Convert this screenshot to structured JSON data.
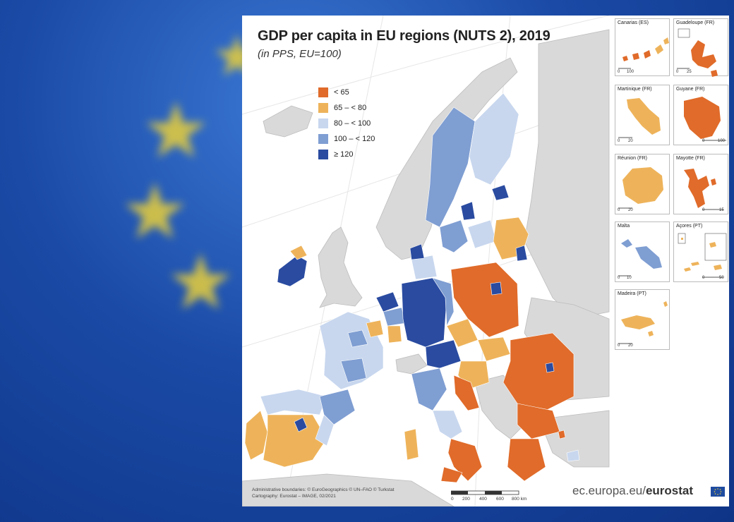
{
  "title": "GDP per capita in EU regions (NUTS 2), 2019",
  "subtitle": "(in PPS, EU=100)",
  "legend": [
    {
      "label": "< 65",
      "color": "#e06b2a"
    },
    {
      "label": "65 – < 80",
      "color": "#eeb35a"
    },
    {
      "label": "80 – < 100",
      "color": "#c8d7ee"
    },
    {
      "label": "100 – < 120",
      "color": "#7f9ed2"
    },
    {
      "label": "≥ 120",
      "color": "#2a4ba0"
    }
  ],
  "insets": [
    {
      "name": "Canarias (ES)",
      "scale": [
        "0",
        "100"
      ]
    },
    {
      "name": "Guadeloupe (FR)",
      "scale": [
        "0",
        "25"
      ]
    },
    {
      "name": "Martinique (FR)",
      "scale": [
        "0",
        "20"
      ]
    },
    {
      "name": "Guyane (FR)",
      "scale": [
        "0",
        "100"
      ]
    },
    {
      "name": "Réunion (FR)",
      "scale": [
        "0",
        "20"
      ]
    },
    {
      "name": "Mayotte (FR)",
      "scale": [
        "0",
        "15"
      ]
    },
    {
      "name": "Malta",
      "scale": [
        "0",
        "10"
      ]
    },
    {
      "name": "Açores (PT)",
      "scale": [
        "0",
        "50"
      ]
    },
    {
      "name": "Madeira (PT)",
      "scale": [
        "0",
        "20"
      ]
    }
  ],
  "credits": {
    "line1": "Administrative boundaries: © EuroGeographics © UN–FAO © Turkstat",
    "line2": "Cartography: Eurostat – IMAGE, 02/2021"
  },
  "scalebar": {
    "ticks": [
      "0",
      "200",
      "400",
      "600",
      "800 km"
    ]
  },
  "source": {
    "prefix": "ec.europa.eu/",
    "brand": "eurostat"
  },
  "colors": {
    "land_nonEU": "#d9d9d9",
    "sea": "#ffffff"
  }
}
